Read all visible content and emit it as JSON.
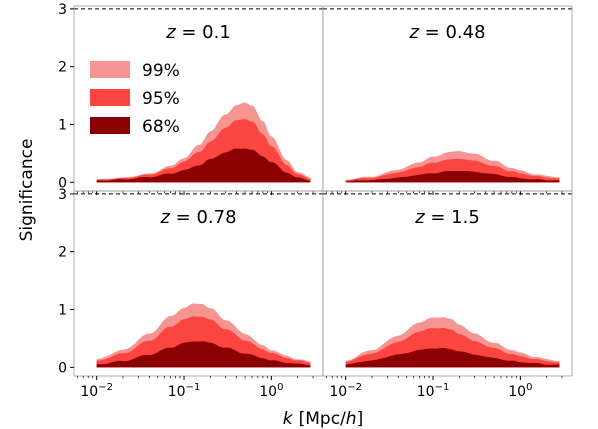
{
  "chart_data": {
    "type": "area",
    "ylabel": "Significance",
    "xlabel_main": "k",
    "xlabel_units": "[Mpc/",
    "xlabel_h": "h",
    "xlabel_close": "]",
    "xscale": "log",
    "xlim": [
      0.0055,
      3.9
    ],
    "ylim": [
      -0.15,
      3.05
    ],
    "x_ticks": [
      {
        "value": 0.01,
        "base": "10",
        "exp": "−2"
      },
      {
        "value": 0.1,
        "base": "10",
        "exp": "−1"
      },
      {
        "value": 1,
        "base": "10",
        "exp": "0"
      }
    ],
    "y_ticks": [
      0,
      1,
      2,
      3
    ],
    "reference_line": {
      "y": 3,
      "style": "dashed"
    },
    "x_range": [
      0.01,
      2.8
    ],
    "legend": {
      "position": "top-left",
      "entries": [
        {
          "label": "99%",
          "color": "#f59490"
        },
        {
          "label": "95%",
          "color": "#fb4541"
        },
        {
          "label": "68%",
          "color": "#8b0000"
        }
      ]
    },
    "panels": [
      {
        "title_var": "z",
        "title_val": " = 0.1",
        "series": [
          {
            "name": "99%",
            "color": "#f59490",
            "points": [
              [
                0.01,
                0.05
              ],
              [
                0.02,
                0.08
              ],
              [
                0.04,
                0.15
              ],
              [
                0.07,
                0.28
              ],
              [
                0.1,
                0.42
              ],
              [
                0.15,
                0.65
              ],
              [
                0.2,
                0.88
              ],
              [
                0.3,
                1.18
              ],
              [
                0.4,
                1.33
              ],
              [
                0.5,
                1.38
              ],
              [
                0.6,
                1.33
              ],
              [
                0.8,
                1.05
              ],
              [
                1.0,
                0.8
              ],
              [
                1.5,
                0.38
              ],
              [
                2.0,
                0.18
              ],
              [
                2.8,
                0.08
              ]
            ]
          },
          {
            "name": "95%",
            "color": "#fb4541",
            "points": [
              [
                0.01,
                0.04
              ],
              [
                0.02,
                0.07
              ],
              [
                0.04,
                0.13
              ],
              [
                0.07,
                0.24
              ],
              [
                0.1,
                0.36
              ],
              [
                0.15,
                0.53
              ],
              [
                0.2,
                0.7
              ],
              [
                0.3,
                0.95
              ],
              [
                0.4,
                1.07
              ],
              [
                0.5,
                1.1
              ],
              [
                0.6,
                1.05
              ],
              [
                0.8,
                0.83
              ],
              [
                1.0,
                0.63
              ],
              [
                1.5,
                0.3
              ],
              [
                2.0,
                0.14
              ],
              [
                2.8,
                0.06
              ]
            ]
          },
          {
            "name": "68%",
            "color": "#8b0000",
            "points": [
              [
                0.01,
                0.03
              ],
              [
                0.02,
                0.05
              ],
              [
                0.04,
                0.09
              ],
              [
                0.07,
                0.15
              ],
              [
                0.1,
                0.21
              ],
              [
                0.15,
                0.3
              ],
              [
                0.2,
                0.4
              ],
              [
                0.3,
                0.52
              ],
              [
                0.4,
                0.58
              ],
              [
                0.5,
                0.59
              ],
              [
                0.6,
                0.56
              ],
              [
                0.8,
                0.45
              ],
              [
                1.0,
                0.35
              ],
              [
                1.5,
                0.17
              ],
              [
                2.0,
                0.08
              ],
              [
                2.8,
                0.03
              ]
            ]
          }
        ]
      },
      {
        "title_var": "z",
        "title_val": " = 0.48",
        "series": [
          {
            "name": "99%",
            "color": "#f59490",
            "points": [
              [
                0.01,
                0.05
              ],
              [
                0.02,
                0.1
              ],
              [
                0.04,
                0.22
              ],
              [
                0.07,
                0.35
              ],
              [
                0.1,
                0.44
              ],
              [
                0.15,
                0.52
              ],
              [
                0.2,
                0.54
              ],
              [
                0.3,
                0.49
              ],
              [
                0.5,
                0.37
              ],
              [
                0.8,
                0.25
              ],
              [
                1.0,
                0.2
              ],
              [
                1.5,
                0.14
              ],
              [
                2.0,
                0.11
              ],
              [
                2.8,
                0.09
              ]
            ]
          },
          {
            "name": "95%",
            "color": "#fb4541",
            "points": [
              [
                0.01,
                0.04
              ],
              [
                0.02,
                0.08
              ],
              [
                0.04,
                0.17
              ],
              [
                0.07,
                0.27
              ],
              [
                0.1,
                0.34
              ],
              [
                0.15,
                0.39
              ],
              [
                0.2,
                0.41
              ],
              [
                0.3,
                0.37
              ],
              [
                0.5,
                0.28
              ],
              [
                0.8,
                0.19
              ],
              [
                1.0,
                0.15
              ],
              [
                1.5,
                0.11
              ],
              [
                2.0,
                0.08
              ],
              [
                2.8,
                0.07
              ]
            ]
          },
          {
            "name": "68%",
            "color": "#8b0000",
            "points": [
              [
                0.01,
                0.02
              ],
              [
                0.02,
                0.04
              ],
              [
                0.04,
                0.08
              ],
              [
                0.07,
                0.13
              ],
              [
                0.1,
                0.16
              ],
              [
                0.15,
                0.19
              ],
              [
                0.2,
                0.2
              ],
              [
                0.3,
                0.18
              ],
              [
                0.5,
                0.14
              ],
              [
                0.8,
                0.09
              ],
              [
                1.0,
                0.07
              ],
              [
                1.5,
                0.05
              ],
              [
                2.0,
                0.04
              ],
              [
                2.8,
                0.03
              ]
            ]
          }
        ]
      },
      {
        "title_var": "z",
        "title_val": " = 0.78",
        "series": [
          {
            "name": "99%",
            "color": "#f59490",
            "points": [
              [
                0.01,
                0.14
              ],
              [
                0.02,
                0.3
              ],
              [
                0.04,
                0.58
              ],
              [
                0.07,
                0.88
              ],
              [
                0.1,
                1.03
              ],
              [
                0.13,
                1.1
              ],
              [
                0.16,
                1.1
              ],
              [
                0.2,
                1.02
              ],
              [
                0.3,
                0.82
              ],
              [
                0.5,
                0.58
              ],
              [
                0.8,
                0.38
              ],
              [
                1.0,
                0.3
              ],
              [
                1.5,
                0.2
              ],
              [
                2.0,
                0.14
              ],
              [
                2.8,
                0.1
              ]
            ]
          },
          {
            "name": "95%",
            "color": "#fb4541",
            "points": [
              [
                0.01,
                0.11
              ],
              [
                0.02,
                0.24
              ],
              [
                0.04,
                0.46
              ],
              [
                0.07,
                0.7
              ],
              [
                0.1,
                0.83
              ],
              [
                0.13,
                0.88
              ],
              [
                0.16,
                0.88
              ],
              [
                0.2,
                0.82
              ],
              [
                0.3,
                0.66
              ],
              [
                0.5,
                0.47
              ],
              [
                0.8,
                0.31
              ],
              [
                1.0,
                0.25
              ],
              [
                1.5,
                0.16
              ],
              [
                2.0,
                0.12
              ],
              [
                2.8,
                0.08
              ]
            ]
          },
          {
            "name": "68%",
            "color": "#8b0000",
            "points": [
              [
                0.01,
                0.05
              ],
              [
                0.02,
                0.11
              ],
              [
                0.04,
                0.22
              ],
              [
                0.07,
                0.34
              ],
              [
                0.1,
                0.42
              ],
              [
                0.13,
                0.45
              ],
              [
                0.16,
                0.45
              ],
              [
                0.2,
                0.42
              ],
              [
                0.3,
                0.34
              ],
              [
                0.5,
                0.24
              ],
              [
                0.8,
                0.16
              ],
              [
                1.0,
                0.12
              ],
              [
                1.5,
                0.08
              ],
              [
                2.0,
                0.06
              ],
              [
                2.8,
                0.04
              ]
            ]
          }
        ]
      },
      {
        "title_var": "z",
        "title_val": " = 1.5",
        "series": [
          {
            "name": "99%",
            "color": "#f59490",
            "points": [
              [
                0.01,
                0.12
              ],
              [
                0.02,
                0.3
              ],
              [
                0.04,
                0.55
              ],
              [
                0.07,
                0.78
              ],
              [
                0.1,
                0.86
              ],
              [
                0.13,
                0.87
              ],
              [
                0.16,
                0.83
              ],
              [
                0.2,
                0.74
              ],
              [
                0.3,
                0.58
              ],
              [
                0.5,
                0.42
              ],
              [
                0.8,
                0.3
              ],
              [
                1.0,
                0.25
              ],
              [
                1.5,
                0.18
              ],
              [
                2.0,
                0.14
              ],
              [
                2.8,
                0.11
              ]
            ]
          },
          {
            "name": "95%",
            "color": "#fb4541",
            "points": [
              [
                0.01,
                0.1
              ],
              [
                0.02,
                0.24
              ],
              [
                0.04,
                0.44
              ],
              [
                0.07,
                0.62
              ],
              [
                0.1,
                0.68
              ],
              [
                0.13,
                0.68
              ],
              [
                0.16,
                0.65
              ],
              [
                0.2,
                0.58
              ],
              [
                0.3,
                0.45
              ],
              [
                0.5,
                0.33
              ],
              [
                0.8,
                0.23
              ],
              [
                1.0,
                0.19
              ],
              [
                1.5,
                0.14
              ],
              [
                2.0,
                0.11
              ],
              [
                2.8,
                0.08
              ]
            ]
          },
          {
            "name": "68%",
            "color": "#8b0000",
            "points": [
              [
                0.01,
                0.05
              ],
              [
                0.02,
                0.12
              ],
              [
                0.04,
                0.22
              ],
              [
                0.07,
                0.3
              ],
              [
                0.1,
                0.33
              ],
              [
                0.13,
                0.33
              ],
              [
                0.16,
                0.31
              ],
              [
                0.2,
                0.28
              ],
              [
                0.3,
                0.22
              ],
              [
                0.5,
                0.16
              ],
              [
                0.8,
                0.11
              ],
              [
                1.0,
                0.09
              ],
              [
                1.5,
                0.07
              ],
              [
                2.0,
                0.05
              ],
              [
                2.8,
                0.04
              ]
            ]
          }
        ]
      }
    ]
  }
}
